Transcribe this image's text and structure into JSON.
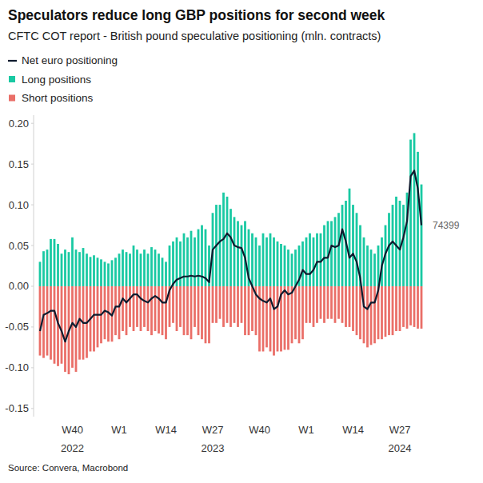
{
  "chart_data": {
    "type": "bar",
    "title": "Speculators reduce long GBP positions for second week",
    "subtitle": "CFTC COT report - British pound speculative positioning (mln. contracts)",
    "source": "Source: Convera, Macrobond",
    "annotations": [
      "74399"
    ],
    "categories": [
      null,
      null,
      null,
      null,
      null,
      null,
      null,
      null,
      null,
      "W40\n2022",
      null,
      null,
      null,
      null,
      null,
      null,
      null,
      null,
      null,
      null,
      null,
      null,
      "W1",
      null,
      null,
      null,
      null,
      null,
      null,
      null,
      null,
      null,
      null,
      null,
      null,
      "W14",
      null,
      null,
      null,
      null,
      null,
      null,
      null,
      null,
      null,
      null,
      null,
      null,
      "W27\n2023",
      null,
      null,
      null,
      null,
      null,
      null,
      null,
      null,
      null,
      null,
      null,
      null,
      "W40",
      null,
      null,
      null,
      null,
      null,
      null,
      null,
      null,
      null,
      null,
      null,
      null,
      "W1",
      null,
      null,
      null,
      null,
      null,
      null,
      null,
      null,
      null,
      null,
      null,
      null,
      "W14",
      null,
      null,
      null,
      null,
      null,
      null,
      null,
      null,
      null,
      null,
      null,
      null,
      "W27\n2024",
      null,
      null,
      null,
      null,
      null,
      null
    ],
    "series": [
      {
        "name": "Net euro positioning",
        "type": "line",
        "color": "#0d1b2e",
        "values": [
          -0.055,
          -0.035,
          -0.033,
          -0.03,
          -0.03,
          -0.045,
          -0.055,
          -0.068,
          -0.055,
          -0.045,
          -0.05,
          -0.04,
          -0.045,
          -0.045,
          -0.04,
          -0.035,
          -0.035,
          -0.035,
          -0.03,
          -0.032,
          -0.036,
          -0.025,
          -0.025,
          -0.015,
          -0.02,
          -0.015,
          -0.01,
          -0.01,
          -0.015,
          -0.018,
          -0.02,
          -0.015,
          -0.012,
          -0.015,
          -0.02,
          -0.02,
          -0.005,
          0.003,
          0.008,
          0.01,
          0.012,
          0.012,
          0.013,
          0.012,
          0.013,
          0.012,
          0.01,
          0.005,
          0.045,
          0.05,
          0.055,
          0.058,
          0.065,
          0.06,
          0.05,
          0.048,
          0.047,
          0.035,
          0.01,
          0,
          -0.01,
          -0.015,
          -0.018,
          -0.02,
          -0.015,
          -0.028,
          -0.025,
          -0.01,
          -0.005,
          -0.01,
          -0.008,
          0,
          0.008,
          0.02,
          0.015,
          0.015,
          0.02,
          0.03,
          0.03,
          0.035,
          0.035,
          0.05,
          0.048,
          0.05,
          0.07,
          0.055,
          0.035,
          0.04,
          0.03,
          0.01,
          -0.025,
          -0.028,
          -0.02,
          -0.02,
          -0.005,
          0.025,
          0.04,
          0.05,
          0.055,
          0.05,
          0.045,
          0.06,
          0.08,
          0.135,
          0.142,
          0.12,
          0.075
        ]
      },
      {
        "name": "Long positions",
        "type": "bar",
        "color": "#19c9a3",
        "values": [
          0.03,
          0.043,
          0.045,
          0.058,
          0.058,
          0.052,
          0.04,
          0.045,
          0.042,
          0.06,
          0.045,
          0.042,
          0.047,
          0.04,
          0.036,
          0.038,
          0.035,
          0.033,
          0.03,
          0.028,
          0.032,
          0.035,
          0.04,
          0.045,
          0.042,
          0.04,
          0.05,
          0.045,
          0.04,
          0.045,
          0.04,
          0.048,
          0.045,
          0.04,
          0.035,
          0.03,
          0.05,
          0.055,
          0.06,
          0.055,
          0.065,
          0.06,
          0.068,
          0.06,
          0.07,
          0.075,
          0.07,
          0.05,
          0.09,
          0.1,
          0.1,
          0.115,
          0.11,
          0.095,
          0.085,
          0.08,
          0.075,
          0.08,
          0.07,
          0.065,
          0.06,
          0.05,
          0.065,
          0.06,
          0.065,
          0.06,
          0.055,
          0.052,
          0.05,
          0.045,
          0.04,
          0.045,
          0.05,
          0.055,
          0.06,
          0.065,
          0.06,
          0.065,
          0.065,
          0.075,
          0.08,
          0.08,
          0.085,
          0.09,
          0.1,
          0.105,
          0.12,
          0.1,
          0.09,
          0.075,
          0.06,
          0.05,
          0.045,
          0.04,
          0.05,
          0.06,
          0.075,
          0.09,
          0.1,
          0.11,
          0.105,
          0.1,
          0.115,
          0.18,
          0.188,
          0.165,
          0.125
        ]
      },
      {
        "name": "Short positions",
        "type": "bar",
        "color": "#ea6f68",
        "values": [
          -0.085,
          -0.088,
          -0.085,
          -0.09,
          -0.095,
          -0.098,
          -0.095,
          -0.105,
          -0.108,
          -0.1,
          -0.105,
          -0.09,
          -0.09,
          -0.088,
          -0.08,
          -0.08,
          -0.075,
          -0.07,
          -0.065,
          -0.068,
          -0.068,
          -0.06,
          -0.065,
          -0.055,
          -0.06,
          -0.05,
          -0.055,
          -0.05,
          -0.055,
          -0.05,
          -0.055,
          -0.06,
          -0.055,
          -0.058,
          -0.06,
          -0.065,
          -0.05,
          -0.045,
          -0.055,
          -0.05,
          -0.06,
          -0.06,
          -0.065,
          -0.05,
          -0.06,
          -0.065,
          -0.07,
          -0.07,
          -0.045,
          -0.045,
          -0.04,
          -0.05,
          -0.045,
          -0.05,
          -0.045,
          -0.05,
          -0.045,
          -0.06,
          -0.06,
          -0.055,
          -0.06,
          -0.08,
          -0.08,
          -0.075,
          -0.08,
          -0.085,
          -0.08,
          -0.08,
          -0.078,
          -0.078,
          -0.07,
          -0.065,
          -0.07,
          -0.065,
          -0.045,
          -0.045,
          -0.05,
          -0.045,
          -0.04,
          -0.045,
          -0.04,
          -0.04,
          -0.045,
          -0.04,
          -0.045,
          -0.05,
          -0.05,
          -0.055,
          -0.06,
          -0.065,
          -0.07,
          -0.075,
          -0.072,
          -0.07,
          -0.065,
          -0.065,
          -0.062,
          -0.06,
          -0.06,
          -0.055,
          -0.055,
          -0.05,
          -0.052,
          -0.048,
          -0.05,
          -0.052,
          -0.052
        ]
      }
    ],
    "ylim": [
      -0.16,
      0.21
    ],
    "yticks": [
      -0.15,
      {
        "value": -0.1,
        "label": "-0.10"
      },
      -0.05,
      {
        "value": 0,
        "label": "0.00"
      },
      0.05,
      {
        "value": 0.1,
        "label": "0.10"
      },
      0.15,
      {
        "value": 0.2,
        "label": "0.20"
      }
    ],
    "grid": false,
    "legend": "top-left"
  }
}
